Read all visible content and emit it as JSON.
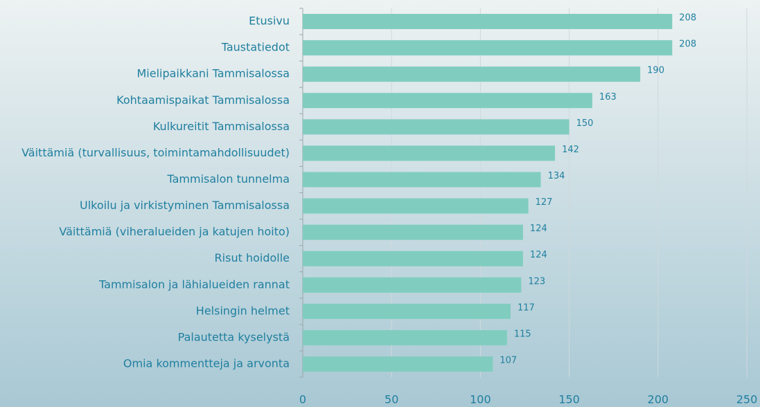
{
  "chart_data": {
    "type": "barh",
    "categories": [
      "Etusivu",
      "Taustatiedot",
      "Mielipaikkani Tammisalossa",
      "Kohtaamispaikat Tammisalossa",
      "Kulkureitit Tammisalossa",
      "Väittämiä (turvallisuus, toimintamahdollisuudet)",
      "Tammisalon tunnelma",
      "Ulkoilu ja virkistyminen Tammisalossa",
      "Väittämiä (viheralueiden ja katujen hoito)",
      "Risut hoidolle",
      "Tammisalon ja lähialueiden rannat",
      "Helsingin helmet",
      "Palautetta kyselystä",
      "Omia kommentteja ja arvonta"
    ],
    "values": [
      208,
      208,
      190,
      163,
      150,
      142,
      134,
      127,
      124,
      124,
      123,
      117,
      115,
      107
    ],
    "color": "#80cdbf",
    "xlim": [
      0,
      250
    ],
    "xticks": [
      0,
      50,
      100,
      150,
      200,
      250
    ],
    "grid": true
  }
}
